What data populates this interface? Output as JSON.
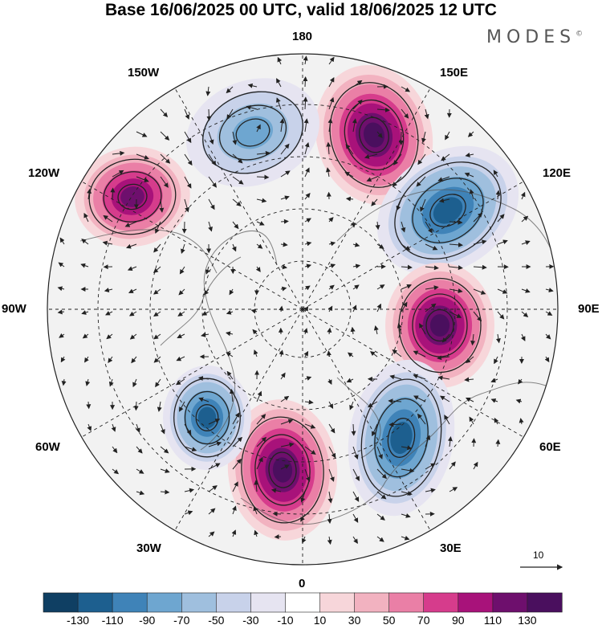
{
  "title": "Base 16/06/2025 00 UTC, valid 18/06/2025 12 UTC",
  "brand": "MODES",
  "brand_mark": "©",
  "longitude_labels": {
    "top": "180",
    "bottom": "0",
    "left": "90W",
    "right": "90E",
    "upper_left": "150W",
    "upper_right": "150E",
    "mid_upper_left": "120W",
    "mid_upper_right": "120E",
    "lower_left": "60W",
    "lower_right": "60E",
    "bottom_left": "30W",
    "bottom_right": "30E"
  },
  "reference_vector_label": "10",
  "colorbar": {
    "labels": [
      "-130",
      "-110",
      "-90",
      "-70",
      "-50",
      "-30",
      "-10",
      "10",
      "30",
      "50",
      "70",
      "90",
      "110",
      "130"
    ],
    "colors": [
      "#0f3f63",
      "#1d5f8f",
      "#3f83b8",
      "#6ea6d0",
      "#9fbfde",
      "#c8d2ea",
      "#e6e4f1",
      "#ffffff",
      "#f7d6da",
      "#f2b2c0",
      "#ea7fa6",
      "#d63c8c",
      "#a8127a",
      "#6e0f6d",
      "#4a0f5e"
    ]
  },
  "anomaly_centers": [
    {
      "sign": "positive",
      "level": "130",
      "region": "150E"
    },
    {
      "sign": "negative",
      "level": "-110",
      "region": "120E"
    },
    {
      "sign": "positive",
      "level": "130",
      "region": "90E"
    },
    {
      "sign": "negative",
      "level": "-110",
      "region": "30E"
    },
    {
      "sign": "positive",
      "level": "130",
      "region": "0"
    },
    {
      "sign": "negative",
      "level": "-110",
      "region": "60W"
    },
    {
      "sign": "positive",
      "level": "110",
      "region": "120W"
    },
    {
      "sign": "negative",
      "level": "-70",
      "region": "150W"
    }
  ]
}
